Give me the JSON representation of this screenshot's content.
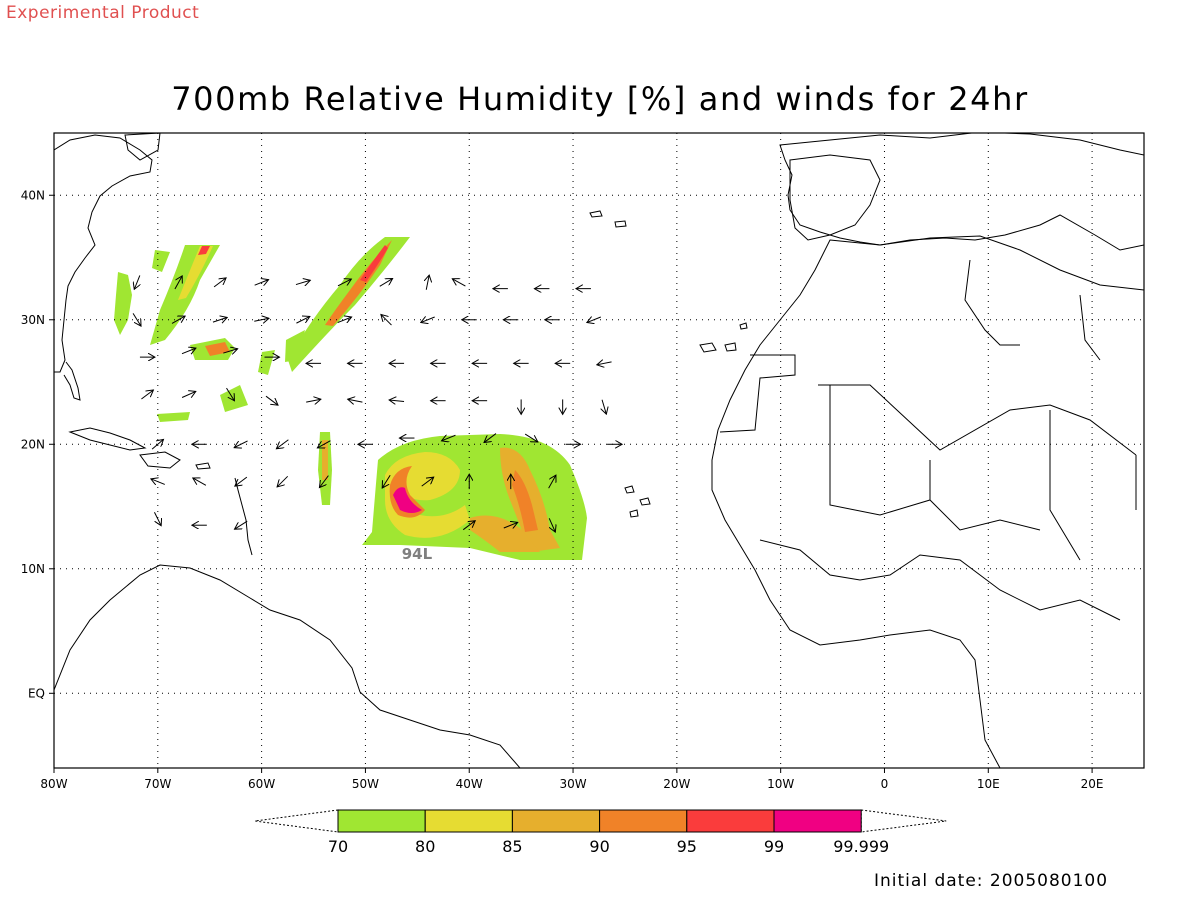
{
  "header": {
    "experimental_label": "Experimental Product",
    "title": "700mb Relative Humidity [%] and winds for 24hr"
  },
  "footer": {
    "initial_date": "Initial date: 2005080100"
  },
  "map": {
    "lon_range": [
      -80,
      25
    ],
    "lat_range": [
      -6,
      45
    ],
    "x_ticks": [
      {
        "lon": -80,
        "label": "80W"
      },
      {
        "lon": -70,
        "label": "70W"
      },
      {
        "lon": -60,
        "label": "60W"
      },
      {
        "lon": -50,
        "label": "50W"
      },
      {
        "lon": -40,
        "label": "40W"
      },
      {
        "lon": -30,
        "label": "30W"
      },
      {
        "lon": -20,
        "label": "20W"
      },
      {
        "lon": -10,
        "label": "10W"
      },
      {
        "lon": 0,
        "label": "0"
      },
      {
        "lon": 10,
        "label": "10E"
      },
      {
        "lon": 20,
        "label": "20E"
      }
    ],
    "y_ticks": [
      {
        "lat": 40,
        "label": "40N"
      },
      {
        "lat": 30,
        "label": "30N"
      },
      {
        "lat": 20,
        "label": "20N"
      },
      {
        "lat": 10,
        "label": "10N"
      },
      {
        "lat": 0,
        "label": "EQ"
      }
    ],
    "storm_label": {
      "text": "94L",
      "lon": -46.5,
      "lat": 10.8
    },
    "colors": {
      "c70": "#a0e632",
      "c80": "#e6dc32",
      "c85": "#e6af2d",
      "c90": "#f08228",
      "c95": "#fa3c3c",
      "c99": "#f00082"
    }
  },
  "colorbar": {
    "labels": [
      "70",
      "80",
      "85",
      "90",
      "95",
      "99",
      "99.999"
    ],
    "colors": [
      "#a0e632",
      "#e6dc32",
      "#e6af2d",
      "#f08228",
      "#fa3c3c",
      "#f00082"
    ]
  },
  "winds": [
    [
      -72,
      33,
      -0.4,
      -1
    ],
    [
      -68,
      33,
      0.5,
      0.9
    ],
    [
      -64,
      33,
      0.8,
      0.6
    ],
    [
      -60,
      33,
      1,
      0.4
    ],
    [
      -56,
      33,
      1,
      0.3
    ],
    [
      -52,
      33,
      1,
      0.5
    ],
    [
      -48,
      33,
      1,
      0.6
    ],
    [
      -44,
      33,
      0.2,
      1
    ],
    [
      -41,
      33,
      -0.9,
      0.5
    ],
    [
      -37,
      32.5,
      -1,
      0
    ],
    [
      -33,
      32.5,
      -1,
      0
    ],
    [
      -29,
      32.5,
      -1,
      0
    ],
    [
      -72,
      30,
      0.5,
      -0.8
    ],
    [
      -68,
      30,
      0.9,
      0.5
    ],
    [
      -64,
      30,
      0.9,
      0.3
    ],
    [
      -60,
      30,
      1,
      0.2
    ],
    [
      -56,
      30,
      1,
      0.5
    ],
    [
      -52,
      30,
      1,
      0.4
    ],
    [
      -48,
      30,
      -0.6,
      0.6
    ],
    [
      -44,
      30,
      -1,
      -0.4
    ],
    [
      -40,
      30,
      -1,
      0
    ],
    [
      -36,
      30,
      -1,
      0
    ],
    [
      -32,
      30,
      -1,
      0
    ],
    [
      -28,
      30,
      -1,
      -0.4
    ],
    [
      -71,
      27,
      1,
      0
    ],
    [
      -67,
      27.5,
      1,
      0.4
    ],
    [
      -63,
      27.5,
      1,
      0.3
    ],
    [
      -59,
      27,
      1,
      0
    ],
    [
      -55,
      26.5,
      -1,
      0
    ],
    [
      -51,
      26.5,
      -1,
      0
    ],
    [
      -47,
      26.5,
      -1,
      0
    ],
    [
      -43,
      26.5,
      -1,
      0
    ],
    [
      -39,
      26.5,
      -1,
      0
    ],
    [
      -35,
      26.5,
      -1,
      0
    ],
    [
      -31,
      26.5,
      -1,
      0
    ],
    [
      -27,
      26.5,
      -1,
      -0.2
    ],
    [
      -71,
      24,
      0.8,
      0.6
    ],
    [
      -67,
      24,
      0.9,
      0.4
    ],
    [
      -63,
      24,
      0.5,
      -0.8
    ],
    [
      -59,
      23.5,
      0.8,
      -0.6
    ],
    [
      -55,
      23.5,
      1,
      0.2
    ],
    [
      -51,
      23.5,
      -1,
      0.2
    ],
    [
      -47,
      23.5,
      -1,
      0.1
    ],
    [
      -43,
      23.5,
      -1,
      0
    ],
    [
      -39,
      23.5,
      -1,
      0
    ],
    [
      -35,
      23,
      0,
      -1
    ],
    [
      -31,
      23,
      0,
      -1
    ],
    [
      -27,
      23,
      0.3,
      -1
    ],
    [
      -70,
      20,
      0.7,
      0.6
    ],
    [
      -66,
      20,
      -1,
      0
    ],
    [
      -62,
      20,
      -1,
      -0.5
    ],
    [
      -58,
      20,
      -0.8,
      -0.6
    ],
    [
      -54,
      20,
      -0.9,
      -0.5
    ],
    [
      -50,
      20,
      -1,
      0
    ],
    [
      -46,
      20.5,
      -1,
      0
    ],
    [
      -42,
      20.5,
      -1,
      -0.4
    ],
    [
      -38,
      20.5,
      -0.8,
      -0.6
    ],
    [
      -34,
      20.5,
      0.8,
      -0.5
    ],
    [
      -30,
      20,
      1,
      0
    ],
    [
      -26,
      20,
      1,
      0
    ],
    [
      -70,
      17,
      -1,
      0.4
    ],
    [
      -66,
      17,
      -0.9,
      0.5
    ],
    [
      -62,
      17,
      -0.8,
      -0.6
    ],
    [
      -58,
      17,
      -0.7,
      -0.7
    ],
    [
      -54,
      17,
      -0.6,
      -0.8
    ],
    [
      -48,
      17,
      -0.5,
      -0.8
    ],
    [
      -44,
      17,
      0.8,
      0.6
    ],
    [
      -40,
      17,
      0,
      1
    ],
    [
      -36,
      17,
      0,
      1
    ],
    [
      -32,
      17,
      0.5,
      0.9
    ],
    [
      -70,
      14,
      0.4,
      -0.8
    ],
    [
      -66,
      13.5,
      -1,
      0
    ],
    [
      -62,
      13.5,
      -0.8,
      -0.5
    ],
    [
      -40,
      13.5,
      0.8,
      0.6
    ],
    [
      -36,
      13.5,
      1,
      0.4
    ],
    [
      -32,
      13.5,
      0.4,
      -0.9
    ]
  ]
}
